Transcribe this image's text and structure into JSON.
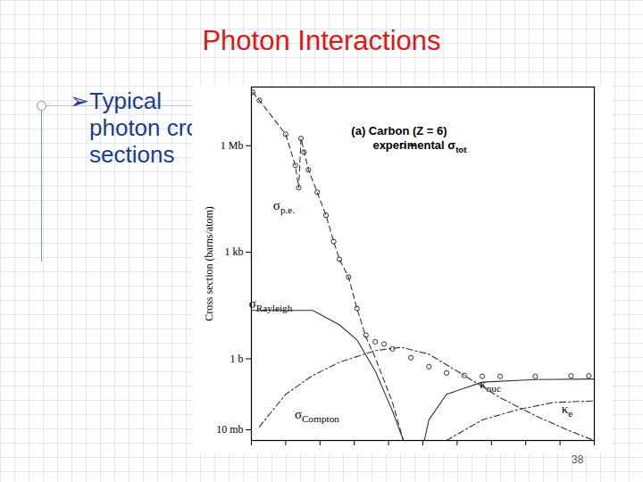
{
  "slide": {
    "title": "Photon Interactions",
    "bullet": "➢Typical photon cross sections",
    "page_number": 38
  },
  "chart_data": {
    "type": "line",
    "log": true,
    "grid": false,
    "tick_labels": "y",
    "y_label": "Cross section (barns/atom)",
    "annotations": [
      "(a) Carbon (Z = 6)"
    ],
    "legend": "top-right",
    "xlim": [
      1e-05,
      100000.0
    ],
    "xticks": [
      1e-05,
      0.0001,
      0.001,
      0.01,
      0.1,
      1,
      10,
      100,
      1000,
      10000,
      100000
    ],
    "ylim": [
      0.005,
      45000000.0
    ],
    "yticks": [
      {
        "value": 1000000,
        "label": "1 Mb"
      },
      {
        "value": 1000,
        "label": "1 kb"
      },
      {
        "value": 1,
        "label": "1 b"
      },
      {
        "value": 0.01,
        "label": "10 mb"
      }
    ],
    "series": [
      {
        "name": "experimental σtot",
        "type": "scatter",
        "marker": "circle",
        "color": "#333333",
        "x": [
          1.1e-05,
          1.7e-05,
          0.0001,
          0.00019,
          0.00024,
          0.00028,
          0.00034,
          0.00046,
          0.00083,
          0.0015,
          0.0025,
          0.0037,
          0.0068,
          0.012,
          0.022,
          0.041,
          0.074,
          0.13,
          0.45,
          1.5,
          4.9,
          16,
          54,
          180,
          1900,
          21000,
          69000
        ],
        "values": [
          32000000.0,
          19000000.0,
          2100000.0,
          280000.0,
          66000.0,
          1600000.0,
          660000.0,
          210000.0,
          49000.0,
          11000.0,
          2000,
          630,
          200,
          26,
          4.6,
          3.0,
          2.6,
          1.9,
          1.07,
          0.6,
          0.4,
          0.34,
          0.32,
          0.32,
          0.32,
          0.33,
          0.33
        ]
      },
      {
        "name": "σp.e.",
        "type": "line",
        "line_style": "dashed",
        "color": "#333333",
        "x": [
          1.1e-05,
          1.7e-05,
          0.0001,
          0.00019,
          0.00024,
          0.00028,
          0.00046,
          0.00083,
          0.0015,
          0.0025,
          0.0037,
          0.0068,
          0.012,
          0.022,
          0.041,
          0.13,
          0.27
        ],
        "values": [
          32000000.0,
          19000000.0,
          2100000.0,
          280000.0,
          66000.0,
          1600000.0,
          210000.0,
          49000.0,
          11000.0,
          2000,
          630,
          200,
          26,
          4.0,
          1.07,
          0.059,
          0.005
        ]
      },
      {
        "name": "σRayleigh",
        "type": "line",
        "line_style": "solid",
        "color": "#333333",
        "x": [
          1e-05,
          0.0001,
          0.00062,
          0.0037,
          0.012,
          0.041,
          0.13,
          0.27
        ],
        "values": [
          23,
          23,
          23,
          9.0,
          3.4,
          0.45,
          0.034,
          0.005
        ]
      },
      {
        "name": "σCompton",
        "type": "line",
        "line_style": "dashdot",
        "color": "#333333",
        "x": [
          1.7e-05,
          0.0001,
          0.00062,
          0.0037,
          0.041,
          0.24,
          1.5,
          16,
          180,
          1900,
          21000,
          98000
        ],
        "values": [
          0.012,
          0.1,
          0.34,
          0.8,
          1.7,
          2.1,
          1.35,
          0.34,
          0.08,
          0.025,
          0.009,
          0.005
        ]
      },
      {
        "name": "κnuc",
        "type": "line",
        "line_style": "solid",
        "color": "#333333",
        "x": [
          1.1,
          1.5,
          4.9,
          54,
          1900,
          98000
        ],
        "values": [
          0.005,
          0.019,
          0.1,
          0.22,
          0.26,
          0.27
        ]
      },
      {
        "name": "κe",
        "type": "line",
        "line_style": "dashdot",
        "color": "#333333",
        "x": [
          4.9,
          54,
          590,
          6500,
          98000
        ],
        "values": [
          0.005,
          0.019,
          0.037,
          0.059,
          0.065
        ]
      }
    ]
  }
}
